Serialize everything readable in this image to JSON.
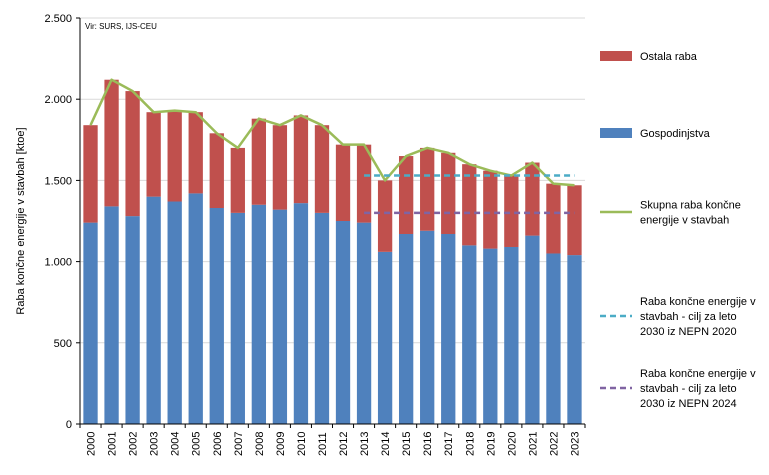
{
  "chart_data": {
    "type": "bar",
    "stacked": true,
    "source_note": "Vir: SURS, IJS-CEU",
    "ylabel": "Raba končne energije v stavbah [ktoe]",
    "ylim": [
      0,
      2500
    ],
    "yticks": [
      0,
      500,
      1000,
      1500,
      2000,
      2500
    ],
    "ytick_labels": [
      "0",
      "500",
      "1.000",
      "1.500",
      "2.000",
      "2.500"
    ],
    "grid": true,
    "legend_placement": "right",
    "categories": [
      "2000",
      "2001",
      "2002",
      "2003",
      "2004",
      "2005",
      "2006",
      "2007",
      "2008",
      "2009",
      "2010",
      "2011",
      "2012",
      "2013",
      "2014",
      "2015",
      "2016",
      "2017",
      "2018",
      "2019",
      "2020",
      "2021",
      "2022",
      "2023"
    ],
    "series": [
      {
        "name": "Gospodinjstva",
        "kind": "bar",
        "color": "#4F81BD",
        "values": [
          1240,
          1340,
          1280,
          1400,
          1370,
          1420,
          1330,
          1300,
          1350,
          1320,
          1360,
          1300,
          1250,
          1240,
          1060,
          1170,
          1190,
          1170,
          1100,
          1080,
          1090,
          1160,
          1050,
          1040
        ]
      },
      {
        "name": "Ostala raba",
        "kind": "bar",
        "color": "#C0504D",
        "values": [
          600,
          780,
          770,
          520,
          560,
          500,
          460,
          400,
          530,
          520,
          540,
          540,
          470,
          480,
          440,
          480,
          510,
          500,
          500,
          480,
          440,
          450,
          430,
          430
        ]
      },
      {
        "name": "Skupna raba končne energije v stavbah",
        "kind": "line",
        "color": "#9BBB59",
        "values": [
          1840,
          2120,
          2050,
          1920,
          1930,
          1920,
          1790,
          1700,
          1880,
          1840,
          1900,
          1840,
          1720,
          1720,
          1500,
          1650,
          1700,
          1670,
          1600,
          1560,
          1530,
          1610,
          1480,
          1470
        ]
      },
      {
        "name": "Raba končne energije v stavbah - cilj za leto 2030 iz NEPN 2020",
        "kind": "dashed",
        "color": "#4BACC6",
        "from": "2013",
        "to": "2023",
        "value": 1530
      },
      {
        "name": "Raba končne energije v stavbah - cilj za leto 2030 iz NEPN 2024",
        "kind": "dashed",
        "color": "#8064A2",
        "from": "2013",
        "to": "2023",
        "value": 1300
      }
    ],
    "legend": [
      {
        "series": 1,
        "lines": [
          "Ostala raba"
        ]
      },
      {
        "series": 0,
        "lines": [
          "Gospodinjstva"
        ]
      },
      {
        "series": 2,
        "lines": [
          "Skupna raba končne",
          "energije v stavbah"
        ]
      },
      {
        "series": 3,
        "lines": [
          "Raba končne energije v",
          "stavbah - cilj za leto",
          "2030 iz NEPN 2020"
        ]
      },
      {
        "series": 4,
        "lines": [
          "Raba končne energije v",
          "stavbah - cilj za leto",
          "2030 iz NEPN 2024"
        ]
      }
    ]
  }
}
